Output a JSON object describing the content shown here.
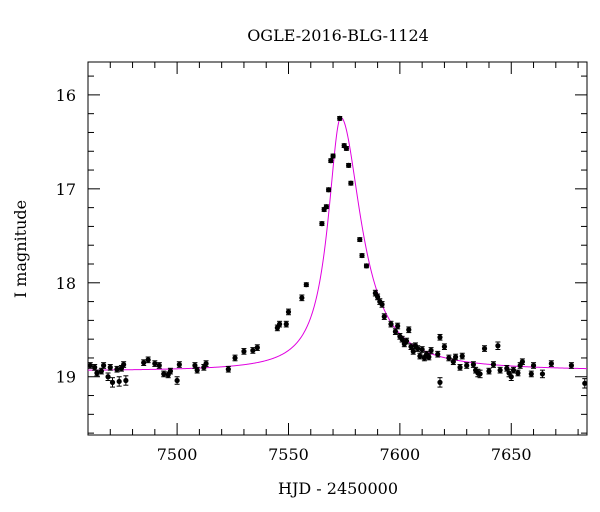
{
  "chart_data": {
    "type": "scatter",
    "title": "OGLE-2016-BLG-1124",
    "xlabel": "HJD - 2450000",
    "ylabel": "I magnitude",
    "xlim": [
      7460,
      7684
    ],
    "ylim": [
      19.62,
      15.65
    ],
    "y_inverted": true,
    "xticks": [
      7500,
      7550,
      7600,
      7650
    ],
    "yticks": [
      16,
      17,
      18,
      19
    ],
    "grid": false,
    "points_color": "#000000",
    "model_color": "#e000e0",
    "series": [
      {
        "points": [
          [
            7461,
            18.88,
            0.03
          ],
          [
            7463,
            18.9,
            0.03
          ],
          [
            7464,
            18.96,
            0.03
          ],
          [
            7466,
            18.94,
            0.03
          ],
          [
            7467,
            18.88,
            0.03
          ],
          [
            7469,
            19.0,
            0.04
          ],
          [
            7470,
            18.9,
            0.03
          ],
          [
            7471,
            19.06,
            0.05
          ],
          [
            7473,
            18.92,
            0.03
          ],
          [
            7474,
            19.05,
            0.05
          ],
          [
            7475,
            18.91,
            0.03
          ],
          [
            7476,
            18.87,
            0.03
          ],
          [
            7477,
            19.04,
            0.05
          ],
          [
            7485,
            18.85,
            0.03
          ],
          [
            7487,
            18.82,
            0.03
          ],
          [
            7490,
            18.86,
            0.03
          ],
          [
            7492,
            18.88,
            0.03
          ],
          [
            7494,
            18.97,
            0.03
          ],
          [
            7496,
            18.98,
            0.03
          ],
          [
            7497,
            18.94,
            0.03
          ],
          [
            7500,
            19.04,
            0.04
          ],
          [
            7501,
            18.87,
            0.03
          ],
          [
            7508,
            18.88,
            0.03
          ],
          [
            7509,
            18.93,
            0.03
          ],
          [
            7512,
            18.9,
            0.03
          ],
          [
            7513,
            18.86,
            0.03
          ],
          [
            7523,
            18.92,
            0.03
          ],
          [
            7526,
            18.8,
            0.03
          ],
          [
            7530,
            18.73,
            0.03
          ],
          [
            7534,
            18.72,
            0.03
          ],
          [
            7536,
            18.69,
            0.03
          ],
          [
            7545,
            18.48,
            0.03
          ],
          [
            7546,
            18.44,
            0.03
          ],
          [
            7549,
            18.44,
            0.03
          ],
          [
            7550,
            18.31,
            0.03
          ],
          [
            7556,
            18.16,
            0.03
          ],
          [
            7558,
            18.02,
            0.02
          ],
          [
            7565,
            17.37,
            0.02
          ],
          [
            7566,
            17.22,
            0.02
          ],
          [
            7567,
            17.19,
            0.02
          ],
          [
            7568,
            17.01,
            0.02
          ],
          [
            7569,
            16.7,
            0.02
          ],
          [
            7570,
            16.65,
            0.02
          ],
          [
            7573,
            16.25,
            0.02
          ],
          [
            7575,
            16.54,
            0.02
          ],
          [
            7576,
            16.57,
            0.02
          ],
          [
            7577,
            16.75,
            0.02
          ],
          [
            7578,
            16.94,
            0.02
          ],
          [
            7582,
            17.54,
            0.02
          ],
          [
            7583,
            17.71,
            0.02
          ],
          [
            7585,
            17.82,
            0.02
          ],
          [
            7589,
            18.11,
            0.03
          ],
          [
            7590,
            18.15,
            0.03
          ],
          [
            7591,
            18.2,
            0.03
          ],
          [
            7592,
            18.23,
            0.03
          ],
          [
            7593,
            18.36,
            0.03
          ],
          [
            7596,
            18.44,
            0.03
          ],
          [
            7598,
            18.52,
            0.03
          ],
          [
            7599,
            18.46,
            0.03
          ],
          [
            7600,
            18.57,
            0.03
          ],
          [
            7601,
            18.6,
            0.03
          ],
          [
            7602,
            18.65,
            0.03
          ],
          [
            7603,
            18.62,
            0.03
          ],
          [
            7604,
            18.5,
            0.03
          ],
          [
            7605,
            18.68,
            0.03
          ],
          [
            7606,
            18.73,
            0.03
          ],
          [
            7607,
            18.67,
            0.03
          ],
          [
            7608,
            18.7,
            0.03
          ],
          [
            7609,
            18.78,
            0.03
          ],
          [
            7610,
            18.71,
            0.03
          ],
          [
            7611,
            18.8,
            0.03
          ],
          [
            7612,
            18.76,
            0.03
          ],
          [
            7613,
            18.79,
            0.03
          ],
          [
            7614,
            18.72,
            0.03
          ],
          [
            7617,
            18.76,
            0.03
          ],
          [
            7618,
            18.58,
            0.03
          ],
          [
            7618,
            19.06,
            0.05
          ],
          [
            7620,
            18.68,
            0.03
          ],
          [
            7622,
            18.8,
            0.03
          ],
          [
            7624,
            18.84,
            0.03
          ],
          [
            7625,
            18.79,
            0.03
          ],
          [
            7627,
            18.9,
            0.03
          ],
          [
            7628,
            18.78,
            0.03
          ],
          [
            7630,
            18.88,
            0.03
          ],
          [
            7633,
            18.87,
            0.03
          ],
          [
            7634,
            18.93,
            0.03
          ],
          [
            7635,
            18.96,
            0.04
          ],
          [
            7636,
            18.97,
            0.04
          ],
          [
            7638,
            18.7,
            0.03
          ],
          [
            7640,
            18.94,
            0.03
          ],
          [
            7642,
            18.87,
            0.03
          ],
          [
            7644,
            18.67,
            0.04
          ],
          [
            7645,
            18.93,
            0.03
          ],
          [
            7648,
            18.91,
            0.03
          ],
          [
            7649,
            18.96,
            0.04
          ],
          [
            7650,
            19.0,
            0.04
          ],
          [
            7651,
            18.93,
            0.03
          ],
          [
            7653,
            18.96,
            0.03
          ],
          [
            7654,
            18.88,
            0.03
          ],
          [
            7655,
            18.84,
            0.03
          ],
          [
            7659,
            18.97,
            0.03
          ],
          [
            7660,
            18.88,
            0.03
          ],
          [
            7664,
            18.97,
            0.04
          ],
          [
            7668,
            18.86,
            0.03
          ],
          [
            7677,
            18.88,
            0.03
          ],
          [
            7683,
            19.07,
            0.05
          ]
        ]
      }
    ],
    "model": {
      "t0": 7573.5,
      "base_mag": 18.94,
      "peak_mag": 16.24,
      "rise_width": 7.0,
      "fall_width": 11.0
    }
  }
}
